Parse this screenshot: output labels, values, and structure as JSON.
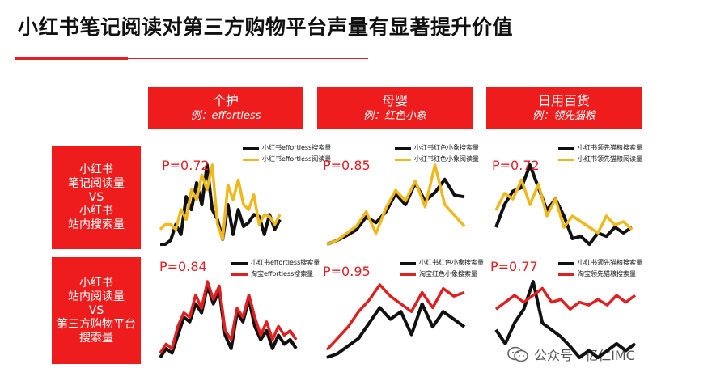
{
  "title": "小红书笔记阅读对第三方购物平台声量有显著提升价值",
  "columns": [
    {
      "label": "个护",
      "example": "例：effortless"
    },
    {
      "label": "母婴",
      "example": "例：红色小象"
    },
    {
      "label": "日用百货",
      "example": "例：领先猫粮"
    }
  ],
  "rows": [
    {
      "label": "小红书\n笔记阅读量\nVS\n小红书\n站内搜索量"
    },
    {
      "label": "小红书\n站内阅读量\nVS\n第三方购物平台\n搜索量"
    }
  ],
  "colors": {
    "black": "#111111",
    "yellow": "#f0b81a",
    "red": "#e02020",
    "accent": "#ee1c1c"
  },
  "watermark": "公众号 · 亿仁IMC",
  "watermark_icon": "wechat-icon",
  "chart_data": [
    {
      "type": "line",
      "p_value": "P=0.72",
      "series": [
        {
          "name": "小红书effortless搜索量",
          "color": "black",
          "values": [
            0,
            0,
            4,
            20,
            10,
            48,
            35,
            62,
            40,
            80,
            35,
            25,
            5,
            40,
            10,
            35,
            18,
            22,
            30,
            28,
            10,
            30,
            15,
            25
          ]
        },
        {
          "name": "小红书effortless阅读量",
          "color": "yellow",
          "values": [
            15,
            20,
            20,
            15,
            35,
            25,
            55,
            45,
            70,
            55,
            80,
            20,
            5,
            60,
            45,
            65,
            40,
            35,
            50,
            20,
            30,
            28,
            20,
            30
          ]
        }
      ]
    },
    {
      "type": "line",
      "p_value": "P=0.85",
      "series": [
        {
          "name": "小红书红色小象搜索量",
          "color": "black",
          "values": [
            0,
            5,
            12,
            20,
            38,
            30,
            45,
            70,
            55,
            85,
            60,
            72,
            90,
            68,
            66
          ]
        },
        {
          "name": "小红书红色小象阅读量",
          "color": "yellow",
          "values": [
            0,
            5,
            15,
            25,
            45,
            15,
            50,
            75,
            60,
            88,
            52,
            110,
            55,
            40,
            25
          ]
        }
      ]
    },
    {
      "type": "line",
      "p_value": "P=0.72",
      "series": [
        {
          "name": "小红书领先猫粮搜索量",
          "color": "black",
          "values": [
            20,
            40,
            52,
            55,
            75,
            55,
            35,
            45,
            30,
            10,
            12,
            5,
            15,
            12,
            20,
            15,
            20
          ]
        },
        {
          "name": "小红书领先猫粮阅读量",
          "color": "yellow",
          "values": [
            35,
            50,
            45,
            62,
            40,
            58,
            30,
            45,
            20,
            30,
            25,
            20,
            15,
            30,
            22,
            25,
            18
          ]
        }
      ]
    },
    {
      "type": "line",
      "p_value": "P=0.84",
      "series": [
        {
          "name": "小红书effortless搜索量",
          "color": "black",
          "values": [
            0,
            10,
            5,
            25,
            45,
            40,
            60,
            50,
            80,
            60,
            75,
            25,
            10,
            50,
            40,
            65,
            35,
            20,
            30,
            10,
            25,
            15,
            20,
            10
          ]
        },
        {
          "name": "淘宝effortless搜索量",
          "color": "red",
          "values": [
            5,
            15,
            10,
            35,
            50,
            45,
            70,
            55,
            85,
            65,
            80,
            30,
            20,
            55,
            45,
            70,
            45,
            25,
            40,
            20,
            35,
            25,
            30,
            20
          ]
        }
      ]
    },
    {
      "type": "line",
      "p_value": "P=0.95",
      "series": [
        {
          "name": "小红书红色小象搜索量",
          "color": "black",
          "values": [
            0,
            5,
            15,
            25,
            45,
            65,
            50,
            60,
            30,
            70,
            40,
            60,
            50,
            40
          ]
        },
        {
          "name": "淘宝红色小象搜索量",
          "color": "red",
          "values": [
            10,
            25,
            40,
            60,
            75,
            95,
            80,
            70,
            60,
            85,
            65,
            90,
            80,
            85
          ]
        }
      ]
    },
    {
      "type": "line",
      "p_value": "P=0.77",
      "series": [
        {
          "name": "小红书领先猫粮搜索量",
          "color": "black",
          "values": [
            20,
            10,
            25,
            35,
            55,
            25,
            20,
            15,
            8,
            0,
            5,
            0,
            5,
            10,
            5,
            10
          ]
        },
        {
          "name": "淘宝领先猫粮搜索量",
          "color": "red",
          "values": [
            35,
            40,
            45,
            40,
            45,
            50,
            40,
            42,
            35,
            40,
            38,
            42,
            38,
            45,
            40,
            45
          ]
        }
      ]
    }
  ]
}
